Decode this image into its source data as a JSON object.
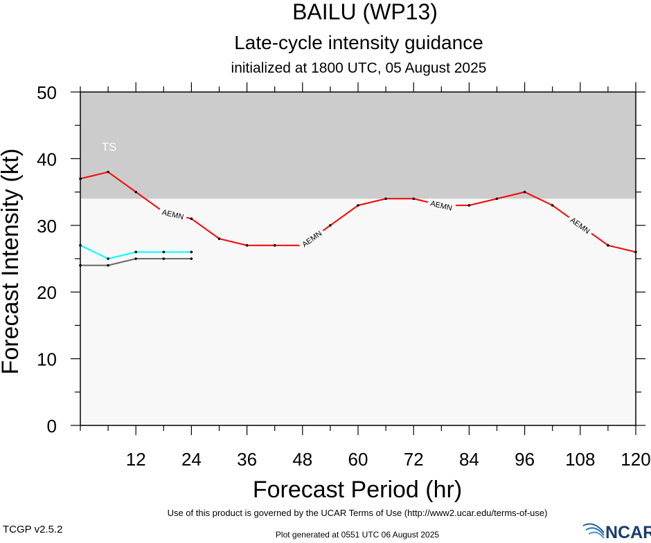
{
  "header": {
    "title": "BAILU (WP13)",
    "subtitle": "Late-cycle intensity guidance",
    "initialized": "initialized at 1800 UTC, 05 August 2025"
  },
  "footer": {
    "terms": "Use of this product is governed by the UCAR Terms of Use (http://www2.ucar.edu/terms-of-use)",
    "version": "TCGP v2.5.2",
    "generated": "Plot generated at 0551 UTC   06 August 2025",
    "logo_text": "NCAR"
  },
  "chart_data": {
    "type": "line",
    "title": "BAILU (WP13)",
    "subtitle": "Late-cycle intensity guidance",
    "xlabel": "Forecast Period (hr)",
    "ylabel": "Forecast Intensity (kt)",
    "xlim": [
      0,
      120
    ],
    "ylim": [
      0,
      50
    ],
    "xticks": [
      12,
      24,
      36,
      48,
      60,
      72,
      84,
      96,
      108,
      120
    ],
    "yticks": [
      0,
      10,
      20,
      30,
      40,
      50
    ],
    "grid": false,
    "bands": [
      {
        "label": "TS",
        "from": 34,
        "to": 50,
        "color": "#cccccc"
      }
    ],
    "background_color": "#f8f8f8",
    "series": [
      {
        "name": "AEMN",
        "color": "#ff0000",
        "x": [
          0,
          6,
          12,
          18,
          24,
          30,
          36,
          42,
          48,
          54,
          60,
          66,
          72,
          78,
          84,
          90,
          96,
          102,
          108,
          114,
          120
        ],
        "y": [
          37,
          38,
          35,
          32,
          31,
          28,
          27,
          27,
          27,
          30,
          33,
          34,
          34,
          33,
          33,
          34,
          35,
          33,
          30,
          27,
          26
        ],
        "inline_labels": [
          20,
          50,
          78,
          108
        ]
      },
      {
        "name": "",
        "color": "#00ffff",
        "x": [
          0,
          6,
          12,
          18,
          24
        ],
        "y": [
          27,
          25,
          26,
          26,
          26
        ]
      },
      {
        "name": "",
        "color": "#666666",
        "x": [
          0,
          6,
          12,
          18,
          24
        ],
        "y": [
          24,
          24,
          25,
          25,
          25
        ]
      }
    ]
  }
}
